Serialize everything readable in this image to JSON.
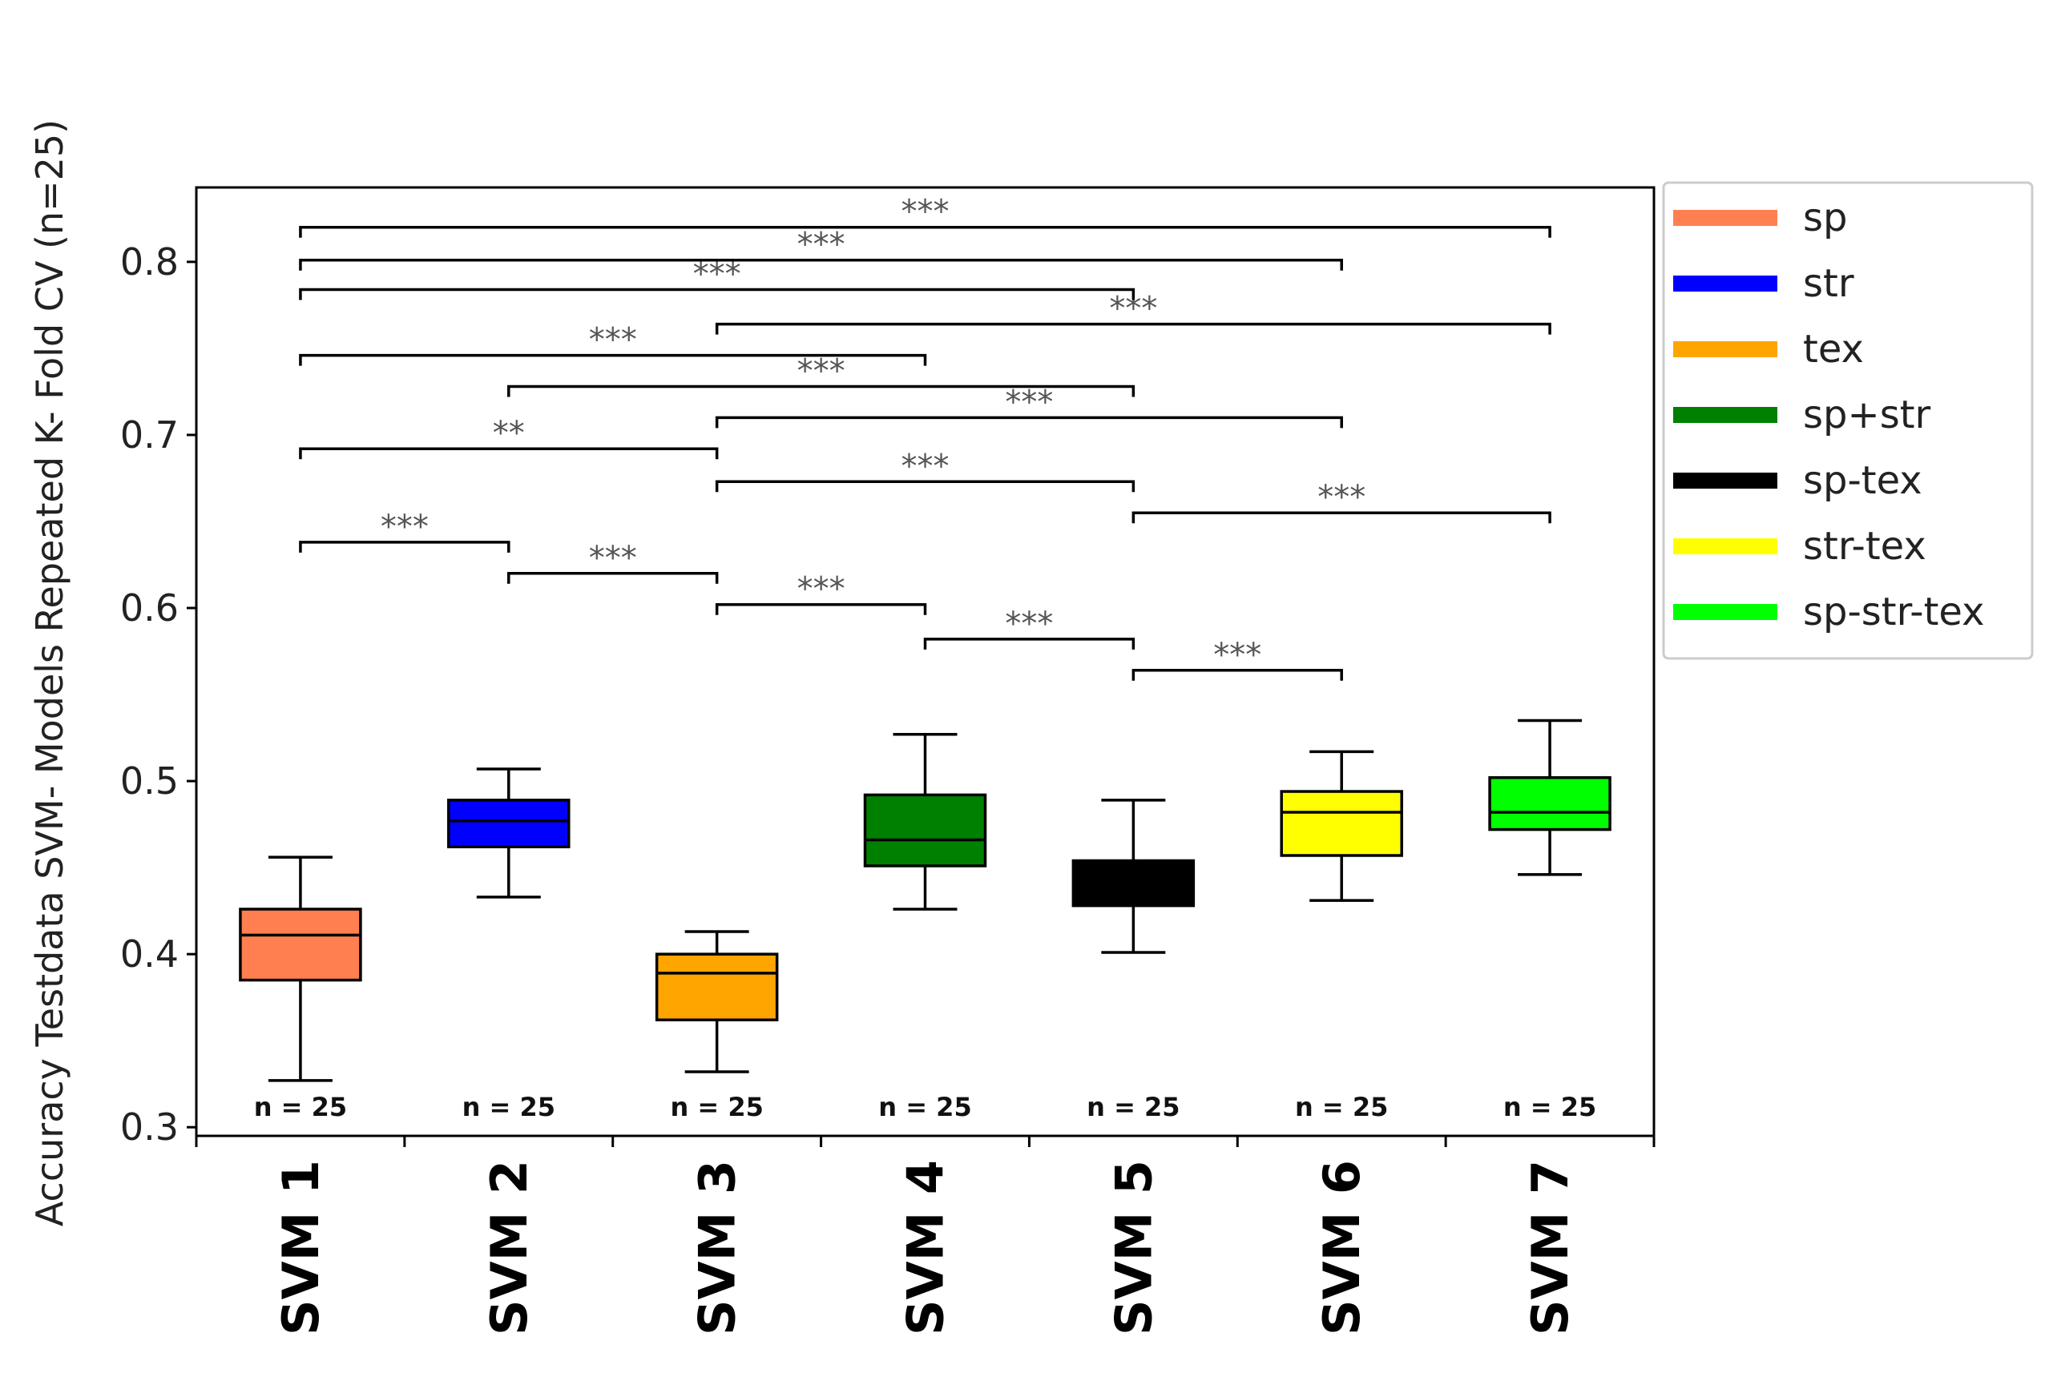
{
  "chart_data": {
    "type": "box",
    "title": "",
    "ylabel": "Accuracy Testdata SVM- Models Repeated K- Fold CV (n=25)",
    "xlabel": "",
    "ylim": [
      0.295,
      0.843
    ],
    "yticks": [
      0.3,
      0.4,
      0.5,
      0.6,
      0.7,
      0.8
    ],
    "ytick_labels": [
      "0.3",
      "0.4",
      "0.5",
      "0.6",
      "0.7",
      "0.8"
    ],
    "categories": [
      "SVM 1",
      "SVM 2",
      "SVM 3",
      "SVM 4",
      "SVM 5",
      "SVM 6",
      "SVM 7"
    ],
    "boxes": [
      {
        "name": "SVM 1",
        "whisker_low": 0.327,
        "q1": 0.385,
        "median": 0.411,
        "q3": 0.426,
        "whisker_high": 0.456,
        "n_label": "n = 25",
        "color": "#ff7f50"
      },
      {
        "name": "SVM 2",
        "whisker_low": 0.433,
        "q1": 0.462,
        "median": 0.477,
        "q3": 0.489,
        "whisker_high": 0.507,
        "n_label": "n = 25",
        "color": "#0000ff"
      },
      {
        "name": "SVM 3",
        "whisker_low": 0.332,
        "q1": 0.362,
        "median": 0.389,
        "q3": 0.4,
        "whisker_high": 0.413,
        "n_label": "n = 25",
        "color": "#ffa500"
      },
      {
        "name": "SVM 4",
        "whisker_low": 0.426,
        "q1": 0.451,
        "median": 0.466,
        "q3": 0.492,
        "whisker_high": 0.527,
        "n_label": "n = 25",
        "color": "#008000"
      },
      {
        "name": "SVM 5",
        "whisker_low": 0.401,
        "q1": 0.428,
        "median": 0.441,
        "q3": 0.454,
        "whisker_high": 0.489,
        "n_label": "n = 25",
        "color": "#000000"
      },
      {
        "name": "SVM 6",
        "whisker_low": 0.431,
        "q1": 0.457,
        "median": 0.482,
        "q3": 0.494,
        "whisker_high": 0.517,
        "n_label": "n = 25",
        "color": "#ffff00"
      },
      {
        "name": "SVM 7",
        "whisker_low": 0.446,
        "q1": 0.472,
        "median": 0.482,
        "q3": 0.502,
        "whisker_high": 0.535,
        "n_label": "n = 25",
        "color": "#00ff00"
      }
    ],
    "significance": [
      {
        "from": 1,
        "to": 2,
        "y": 0.638,
        "label": "***"
      },
      {
        "from": 2,
        "to": 3,
        "y": 0.62,
        "label": "***"
      },
      {
        "from": 3,
        "to": 4,
        "y": 0.602,
        "label": "***"
      },
      {
        "from": 4,
        "to": 5,
        "y": 0.582,
        "label": "***"
      },
      {
        "from": 5,
        "to": 6,
        "y": 0.564,
        "label": "***"
      },
      {
        "from": 5,
        "to": 7,
        "y": 0.655,
        "label": "***"
      },
      {
        "from": 3,
        "to": 5,
        "y": 0.673,
        "label": "***"
      },
      {
        "from": 1,
        "to": 3,
        "y": 0.692,
        "label": "**"
      },
      {
        "from": 3,
        "to": 6,
        "y": 0.71,
        "label": "***"
      },
      {
        "from": 2,
        "to": 5,
        "y": 0.728,
        "label": "***"
      },
      {
        "from": 1,
        "to": 4,
        "y": 0.746,
        "label": "***"
      },
      {
        "from": 3,
        "to": 7,
        "y": 0.764,
        "label": "***"
      },
      {
        "from": 1,
        "to": 5,
        "y": 0.784,
        "label": "***"
      },
      {
        "from": 1,
        "to": 6,
        "y": 0.801,
        "label": "***"
      },
      {
        "from": 1,
        "to": 7,
        "y": 0.82,
        "label": "***"
      }
    ],
    "legend": {
      "position": "outside-top-right",
      "entries": [
        {
          "label": "sp",
          "color": "#ff7f50"
        },
        {
          "label": "str",
          "color": "#0000ff"
        },
        {
          "label": "tex",
          "color": "#ffa500"
        },
        {
          "label": "sp+str",
          "color": "#008000"
        },
        {
          "label": "sp-tex",
          "color": "#000000"
        },
        {
          "label": "str-tex",
          "color": "#ffff00"
        },
        {
          "label": "sp-str-tex",
          "color": "#00ff00"
        }
      ]
    }
  }
}
